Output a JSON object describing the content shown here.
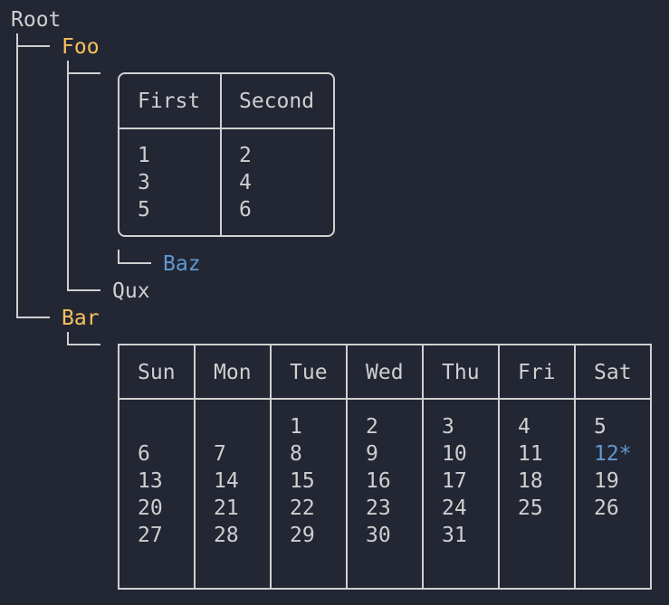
{
  "tree": {
    "root": "Root",
    "foo": "Foo",
    "baz": "Baz",
    "qux": "Qux",
    "bar": "Bar"
  },
  "table": {
    "headers": [
      "First",
      "Second"
    ],
    "rows": [
      [
        "1",
        "2"
      ],
      [
        "3",
        "4"
      ],
      [
        "5",
        "6"
      ]
    ]
  },
  "calendar": {
    "headers": [
      "Sun",
      "Mon",
      "Tue",
      "Wed",
      "Thu",
      "Fri",
      "Sat"
    ],
    "weeks": [
      [
        "",
        "",
        "1",
        "2",
        "3",
        "4",
        "5"
      ],
      [
        "6",
        "7",
        "8",
        "9",
        "10",
        "11",
        "12*"
      ],
      [
        "13",
        "14",
        "15",
        "16",
        "17",
        "18",
        "19"
      ],
      [
        "20",
        "21",
        "22",
        "23",
        "24",
        "25",
        "26"
      ],
      [
        "27",
        "28",
        "29",
        "30",
        "31",
        "",
        ""
      ]
    ],
    "highlighted": "12*"
  },
  "colors": {
    "background": "#232633",
    "text": "#cfcfcf",
    "branch": "#f7c25e",
    "leaf_highlight": "#5e9ad3"
  }
}
